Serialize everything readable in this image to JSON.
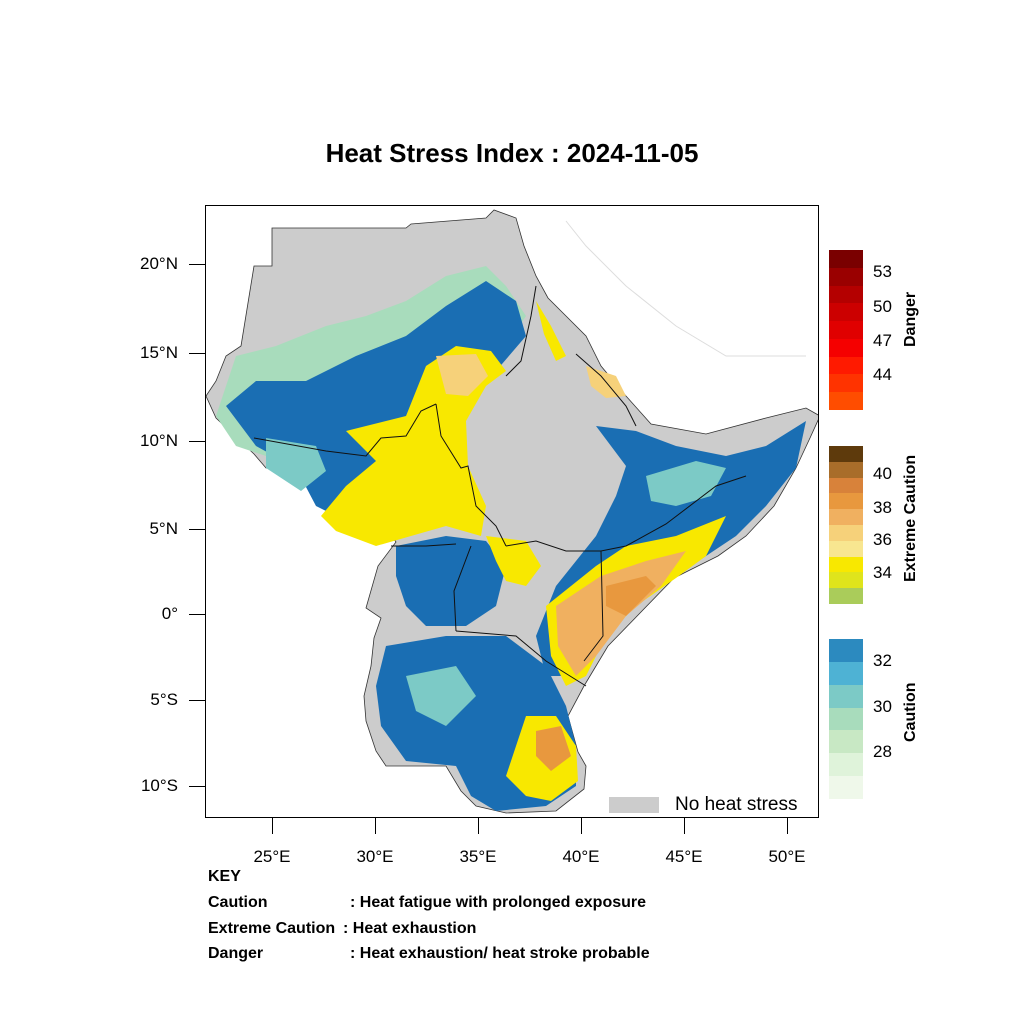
{
  "title": "Heat Stress Index : 2024-11-05",
  "y_axis_labels": [
    "20°N",
    "15°N",
    "10°N",
    "5°N",
    "0°",
    "5°S",
    "10°S"
  ],
  "x_axis_labels": [
    "25°E",
    "30°E",
    "35°E",
    "40°E",
    "45°E",
    "50°E"
  ],
  "colorbars": {
    "danger": {
      "title": "Danger",
      "labels": [
        "53",
        "50",
        "47",
        "44"
      ],
      "colors": [
        "#7a0000",
        "#9a0000",
        "#b40000",
        "#cc0000",
        "#e00000",
        "#f50000",
        "#ff1a00",
        "#ff3300",
        "#ff4d00"
      ]
    },
    "extreme": {
      "title": "Extreme Caution",
      "labels": [
        "40",
        "38",
        "36",
        "34"
      ],
      "colors": [
        "#5e3a0c",
        "#a86d2a",
        "#d8823a",
        "#e8983e",
        "#f0b060",
        "#f6d17a",
        "#f8e690",
        "#f8e800",
        "#dfe41c",
        "#aacc5a"
      ]
    },
    "caution": {
      "title": "Caution",
      "labels": [
        "32",
        "30",
        "28"
      ],
      "colors": [
        "#2c8abf",
        "#4eb2d4",
        "#7ccac6",
        "#a8dcbc",
        "#c8e8c4",
        "#dff3da",
        "#eff8ea"
      ]
    }
  },
  "legend": {
    "no_heat_stress": "No heat stress",
    "no_heat_color": "#cccccc"
  },
  "key": {
    "heading": "KEY",
    "rows": [
      {
        "term": "Caution",
        "desc": ": Heat fatigue with prolonged exposure"
      },
      {
        "term": "Extreme Caution",
        "desc": ": Heat exhaustion"
      },
      {
        "term": "Danger",
        "desc": ": Heat exhaustion/ heat stroke probable"
      }
    ]
  }
}
